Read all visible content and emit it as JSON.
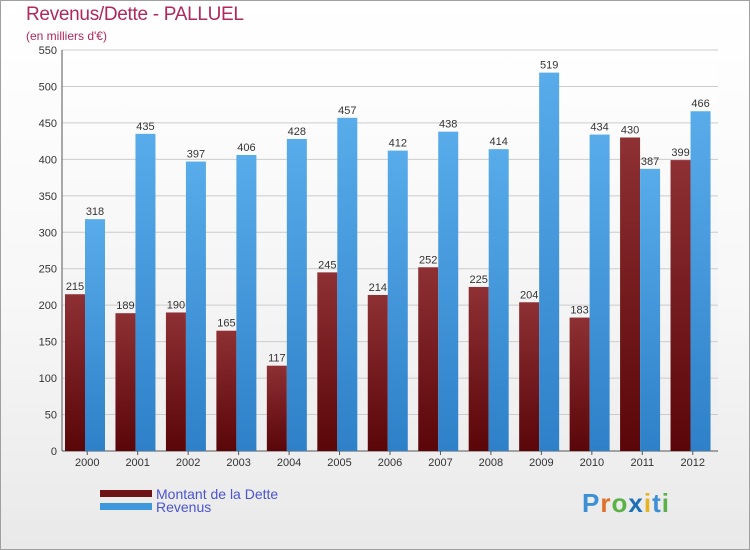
{
  "title": "Revenus/Dette - PALLUEL",
  "subtitle": "(en milliers d'€)",
  "chart_data": {
    "type": "bar",
    "title": "Revenus/Dette - PALLUEL",
    "ylabel": "(en milliers d'€)",
    "xlabel": "",
    "categories": [
      "2000",
      "2001",
      "2002",
      "2003",
      "2004",
      "2005",
      "2006",
      "2007",
      "2008",
      "2009",
      "2010",
      "2011",
      "2012"
    ],
    "series": [
      {
        "name": "Montant de la Dette",
        "color": "#6e1418",
        "values": [
          215,
          189,
          190,
          165,
          117,
          245,
          214,
          252,
          225,
          204,
          183,
          430,
          399
        ]
      },
      {
        "name": "Revenus",
        "color": "#3f97dc",
        "values": [
          318,
          435,
          397,
          406,
          428,
          457,
          412,
          438,
          414,
          519,
          434,
          387,
          466
        ]
      }
    ],
    "ylim": [
      0,
      550
    ],
    "yticks": [
      0,
      50,
      100,
      150,
      200,
      250,
      300,
      350,
      400,
      450,
      500,
      550
    ],
    "grid": true,
    "legend_position": "bottom-left"
  },
  "legend": {
    "dette": "Montant de la Dette",
    "revenus": "Revenus"
  },
  "logo": {
    "letters": [
      "P",
      "r",
      "o",
      "x",
      "i",
      "t",
      "i"
    ],
    "colors": [
      "#3d8fd6",
      "#e0702a",
      "#5bb347",
      "#1d6fb8",
      "#e8b321",
      "#3d8fd6",
      "#5bb347"
    ]
  }
}
